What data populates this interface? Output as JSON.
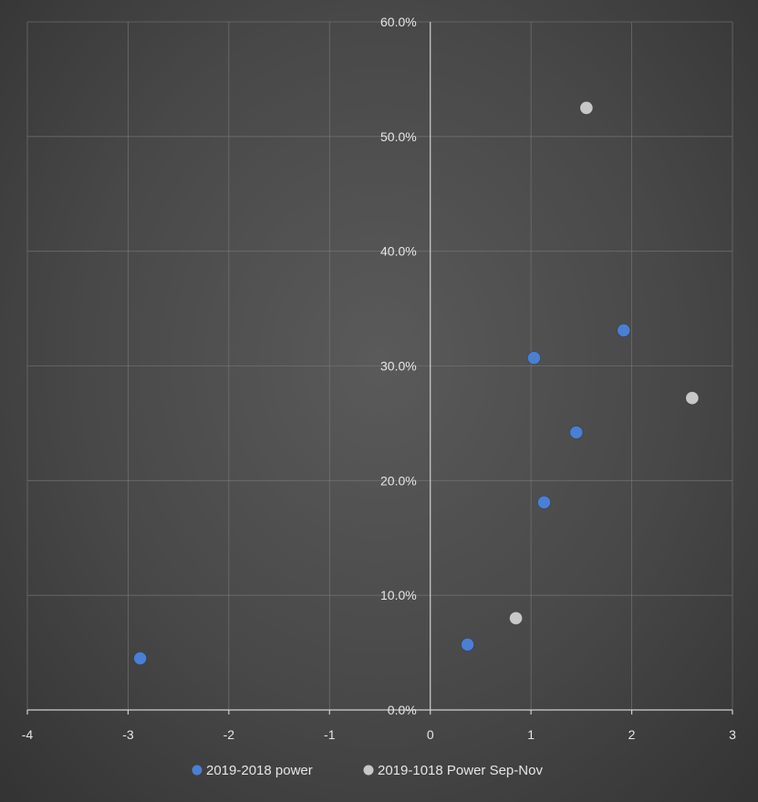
{
  "chart_data": {
    "type": "scatter",
    "title": "",
    "xlabel": "",
    "ylabel": "",
    "xlim": [
      -4,
      3
    ],
    "ylim": [
      0,
      60
    ],
    "x_ticks": [
      -4,
      -3,
      -2,
      -1,
      0,
      1,
      2,
      3
    ],
    "x_tick_labels": [
      "-4",
      "-3",
      "-2",
      "-1",
      "0",
      "1",
      "2",
      "3"
    ],
    "y_ticks": [
      0,
      10,
      20,
      30,
      40,
      50,
      60
    ],
    "y_tick_labels": [
      "0.0%",
      "10.0%",
      "20.0%",
      "30.0%",
      "40.0%",
      "50.0%",
      "60.0%"
    ],
    "grid": true,
    "legend_position": "bottom",
    "series": [
      {
        "name": "2019-2018 power",
        "color": "#4a7fd4",
        "points": [
          {
            "x": -2.88,
            "y": 4.5
          },
          {
            "x": 0.37,
            "y": 5.7
          },
          {
            "x": 1.03,
            "y": 30.7
          },
          {
            "x": 1.13,
            "y": 18.1
          },
          {
            "x": 1.45,
            "y": 24.2
          },
          {
            "x": 1.92,
            "y": 33.1
          }
        ]
      },
      {
        "name": "2019-1018 Power Sep-Nov",
        "color": "#c8c8c8",
        "points": [
          {
            "x": 0.85,
            "y": 8.0
          },
          {
            "x": 1.55,
            "y": 52.5
          },
          {
            "x": 2.6,
            "y": 27.2
          }
        ]
      }
    ]
  }
}
